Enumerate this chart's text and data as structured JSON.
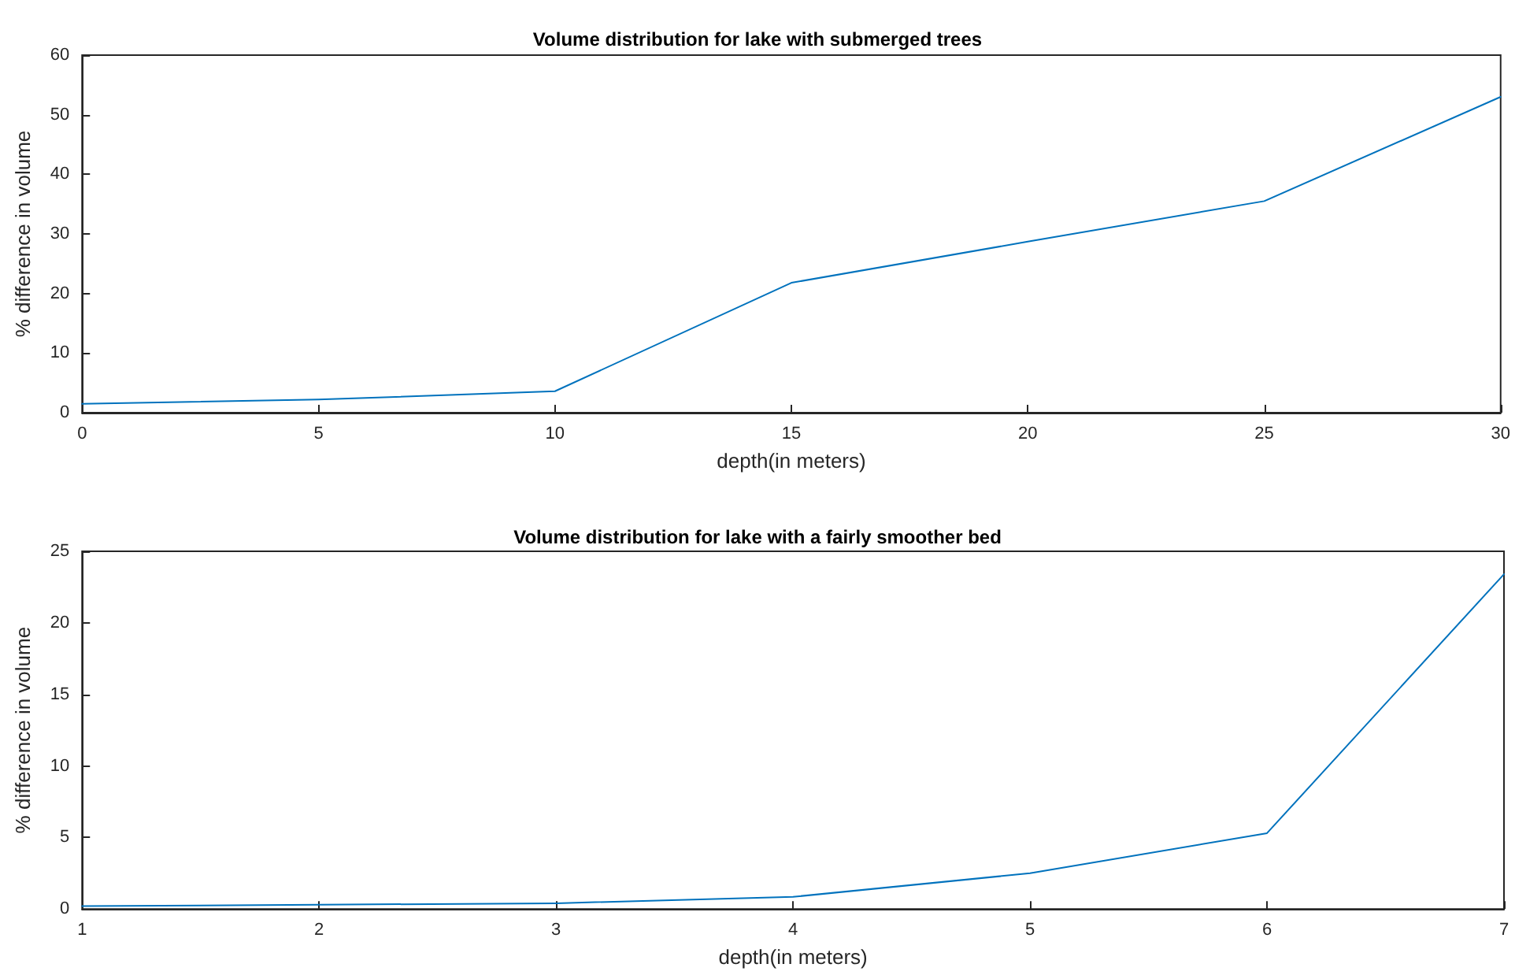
{
  "chart_data": [
    {
      "type": "line",
      "title": "Volume distribution for lake with submerged trees",
      "xlabel": "depth(in meters)",
      "ylabel": "% difference in volume",
      "x": [
        0,
        5,
        10,
        15,
        20,
        25,
        30
      ],
      "values": [
        1.5,
        2.2,
        3.6,
        21.8,
        28.7,
        35.5,
        53
      ],
      "color": "#0072bd",
      "xlim": [
        0,
        30
      ],
      "xticks": [
        0,
        5,
        10,
        15,
        20,
        25,
        30
      ],
      "ylim": [
        0,
        60
      ],
      "yticks": [
        0,
        10,
        20,
        30,
        40,
        50,
        60
      ],
      "grid": false,
      "marker": "none",
      "line_style": "solid"
    },
    {
      "type": "line",
      "title": "Volume distribution for lake with a fairly smoother bed",
      "xlabel": "depth(in meters)",
      "ylabel": "% difference in volume",
      "x": [
        1,
        2,
        3,
        4,
        5,
        6,
        7
      ],
      "values": [
        0.2,
        0.3,
        0.4,
        0.85,
        2.5,
        5.3,
        23.4
      ],
      "color": "#0072bd",
      "xlim": [
        1,
        7
      ],
      "xticks": [
        1,
        2,
        3,
        4,
        5,
        6,
        7
      ],
      "ylim": [
        0,
        25
      ],
      "yticks": [
        0,
        5,
        10,
        15,
        20,
        25
      ],
      "grid": false,
      "marker": "none",
      "line_style": "solid"
    }
  ]
}
